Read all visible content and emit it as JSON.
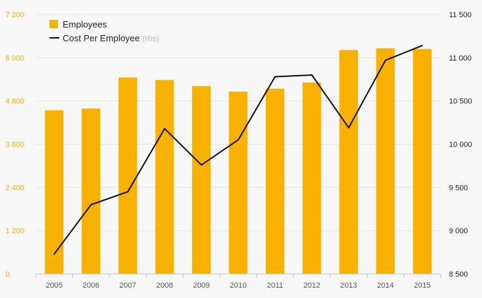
{
  "chart_data": {
    "type": "bar",
    "categories": [
      "2005",
      "2006",
      "2007",
      "2008",
      "2009",
      "2010",
      "2011",
      "2012",
      "2013",
      "2014",
      "2015"
    ],
    "series": [
      {
        "name": "Employees",
        "type": "bar",
        "axis": "left",
        "color": "#f9b100",
        "values": [
          4540,
          4590,
          5450,
          5380,
          5210,
          5060,
          5140,
          5310,
          6210,
          6260,
          6240
        ]
      },
      {
        "name": "Cost Per Employee",
        "note": "(rhs)",
        "type": "line",
        "axis": "right",
        "color": "#111111",
        "values": [
          8730,
          9300,
          9450,
          10180,
          9760,
          10050,
          10780,
          10800,
          10190,
          10970,
          11140
        ]
      }
    ],
    "y_left": {
      "ylim": [
        0,
        7200
      ],
      "ticks": [
        0,
        1200,
        2400,
        3600,
        4800,
        6000,
        7200
      ],
      "tick_labels": [
        "0",
        "1 200",
        "2 400",
        "3 600",
        "4 800",
        "6 000",
        "7 200"
      ],
      "label_color": "#f2b000"
    },
    "y_right": {
      "ylim": [
        8500,
        11500
      ],
      "ticks": [
        8500,
        9000,
        9500,
        10000,
        10500,
        11000,
        11500
      ],
      "tick_labels": [
        "8 500",
        "9 000",
        "9 500",
        "10 000",
        "10 500",
        "11 000",
        "11 500"
      ]
    },
    "grid": true,
    "legend_position": "top-left"
  }
}
